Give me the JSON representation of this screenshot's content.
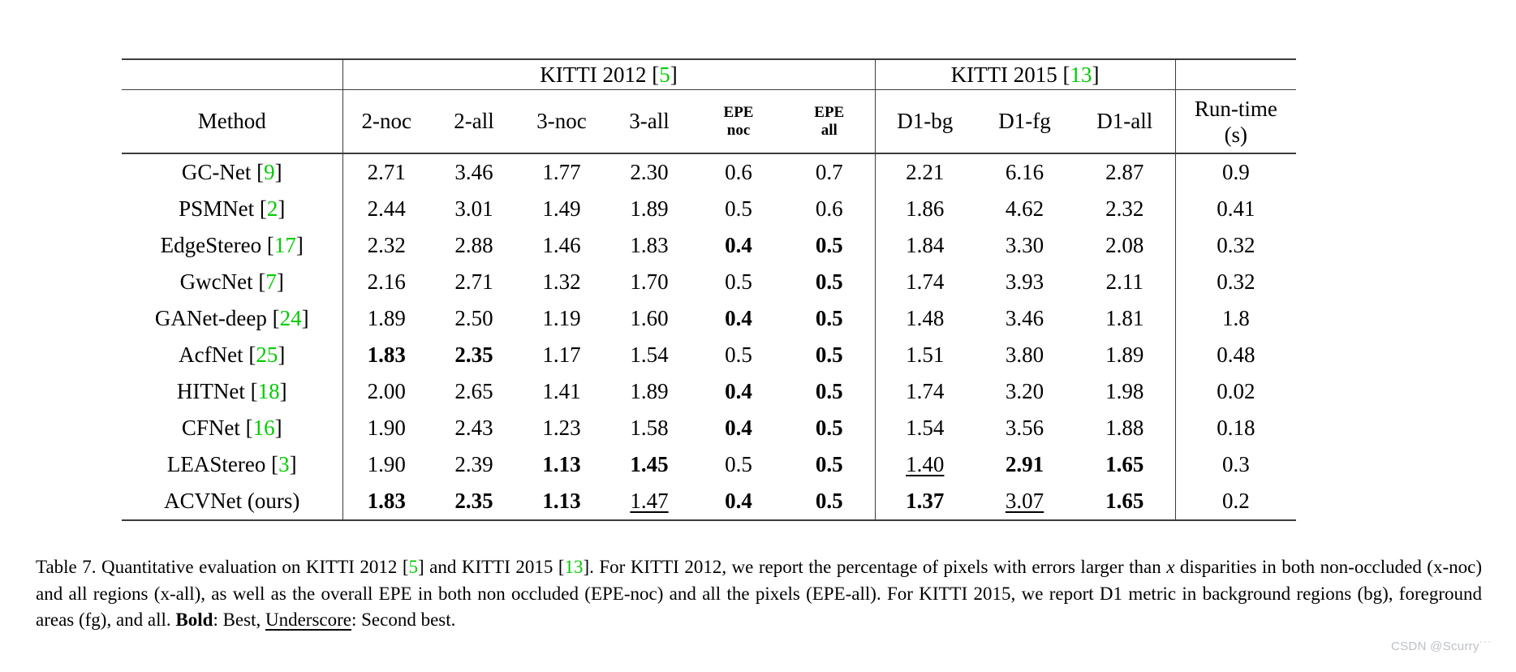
{
  "colors": {
    "citation_green": "#00cc00",
    "rule_gray": "#3c3c3c",
    "watermark_gray": "#bcc1c7"
  },
  "table": {
    "group_headers": {
      "kitti2012": [
        {
          "t": "KITTI 2012 ["
        },
        {
          "t": "5",
          "g": true
        },
        {
          "t": "]"
        }
      ],
      "kitti2015": [
        {
          "t": "KITTI 2015 ["
        },
        {
          "t": "13",
          "g": true
        },
        {
          "t": "]"
        }
      ]
    },
    "columns": {
      "method": "Method",
      "c1": "2-noc",
      "c2": "2-all",
      "c3": "3-noc",
      "c4": "3-all",
      "epe_noc": [
        "EPE",
        "noc"
      ],
      "epe_all": [
        "EPE",
        "all"
      ],
      "d1bg": "D1-bg",
      "d1fg": "D1-fg",
      "d1all": "D1-all",
      "runtime": [
        "Run-time",
        "(s)"
      ]
    },
    "rows": [
      {
        "method": [
          {
            "t": "GC-Net ["
          },
          {
            "t": "9",
            "g": true
          },
          {
            "t": "]"
          }
        ],
        "cells": [
          {
            "t": "2.71"
          },
          {
            "t": "3.46"
          },
          {
            "t": "1.77"
          },
          {
            "t": "2.30"
          },
          {
            "t": "0.6"
          },
          {
            "t": "0.7"
          },
          {
            "t": "2.21"
          },
          {
            "t": "6.16"
          },
          {
            "t": "2.87"
          },
          {
            "t": "0.9"
          }
        ]
      },
      {
        "method": [
          {
            "t": "PSMNet ["
          },
          {
            "t": "2",
            "g": true
          },
          {
            "t": "]"
          }
        ],
        "cells": [
          {
            "t": "2.44"
          },
          {
            "t": "3.01"
          },
          {
            "t": "1.49"
          },
          {
            "t": "1.89"
          },
          {
            "t": "0.5"
          },
          {
            "t": "0.6"
          },
          {
            "t": "1.86"
          },
          {
            "t": "4.62"
          },
          {
            "t": "2.32"
          },
          {
            "t": "0.41"
          }
        ]
      },
      {
        "method": [
          {
            "t": "EdgeStereo ["
          },
          {
            "t": "17",
            "g": true
          },
          {
            "t": "]"
          }
        ],
        "cells": [
          {
            "t": "2.32"
          },
          {
            "t": "2.88"
          },
          {
            "t": "1.46"
          },
          {
            "t": "1.83"
          },
          {
            "t": "0.4",
            "b": true
          },
          {
            "t": "0.5",
            "b": true
          },
          {
            "t": "1.84"
          },
          {
            "t": "3.30"
          },
          {
            "t": "2.08"
          },
          {
            "t": "0.32"
          }
        ]
      },
      {
        "method": [
          {
            "t": "GwcNet ["
          },
          {
            "t": "7",
            "g": true
          },
          {
            "t": "]"
          }
        ],
        "cells": [
          {
            "t": "2.16"
          },
          {
            "t": "2.71"
          },
          {
            "t": "1.32"
          },
          {
            "t": "1.70"
          },
          {
            "t": "0.5"
          },
          {
            "t": "0.5",
            "b": true
          },
          {
            "t": "1.74"
          },
          {
            "t": "3.93"
          },
          {
            "t": "2.11"
          },
          {
            "t": "0.32"
          }
        ]
      },
      {
        "method": [
          {
            "t": "GANet-deep ["
          },
          {
            "t": "24",
            "g": true
          },
          {
            "t": "]"
          }
        ],
        "cells": [
          {
            "t": "1.89"
          },
          {
            "t": "2.50"
          },
          {
            "t": "1.19"
          },
          {
            "t": "1.60"
          },
          {
            "t": "0.4",
            "b": true
          },
          {
            "t": "0.5",
            "b": true
          },
          {
            "t": "1.48"
          },
          {
            "t": "3.46"
          },
          {
            "t": "1.81"
          },
          {
            "t": "1.8"
          }
        ]
      },
      {
        "method": [
          {
            "t": "AcfNet ["
          },
          {
            "t": "25",
            "g": true
          },
          {
            "t": "]"
          }
        ],
        "cells": [
          {
            "t": "1.83",
            "b": true
          },
          {
            "t": "2.35",
            "b": true
          },
          {
            "t": "1.17"
          },
          {
            "t": "1.54"
          },
          {
            "t": "0.5"
          },
          {
            "t": "0.5",
            "b": true
          },
          {
            "t": "1.51"
          },
          {
            "t": "3.80"
          },
          {
            "t": "1.89"
          },
          {
            "t": "0.48"
          }
        ]
      },
      {
        "method": [
          {
            "t": "HITNet ["
          },
          {
            "t": "18",
            "g": true
          },
          {
            "t": "]"
          }
        ],
        "cells": [
          {
            "t": "2.00"
          },
          {
            "t": "2.65"
          },
          {
            "t": "1.41"
          },
          {
            "t": "1.89"
          },
          {
            "t": "0.4",
            "b": true
          },
          {
            "t": "0.5",
            "b": true
          },
          {
            "t": "1.74"
          },
          {
            "t": "3.20"
          },
          {
            "t": "1.98"
          },
          {
            "t": "0.02"
          }
        ]
      },
      {
        "method": [
          {
            "t": "CFNet ["
          },
          {
            "t": "16",
            "g": true
          },
          {
            "t": "]"
          }
        ],
        "cells": [
          {
            "t": "1.90"
          },
          {
            "t": "2.43"
          },
          {
            "t": "1.23"
          },
          {
            "t": "1.58"
          },
          {
            "t": "0.4",
            "b": true
          },
          {
            "t": "0.5",
            "b": true
          },
          {
            "t": "1.54"
          },
          {
            "t": "3.56"
          },
          {
            "t": "1.88"
          },
          {
            "t": "0.18"
          }
        ]
      },
      {
        "method": [
          {
            "t": "LEAStereo ["
          },
          {
            "t": "3",
            "g": true
          },
          {
            "t": "]"
          }
        ],
        "cells": [
          {
            "t": "1.90"
          },
          {
            "t": "2.39"
          },
          {
            "t": "1.13",
            "b": true
          },
          {
            "t": "1.45",
            "b": true
          },
          {
            "t": "0.5"
          },
          {
            "t": "0.5",
            "b": true
          },
          {
            "t": "1.40",
            "u": true
          },
          {
            "t": "2.91",
            "b": true
          },
          {
            "t": "1.65",
            "b": true
          },
          {
            "t": "0.3"
          }
        ]
      },
      {
        "method": [
          {
            "t": "ACVNet (ours)"
          }
        ],
        "cells": [
          {
            "t": "1.83",
            "b": true
          },
          {
            "t": "2.35",
            "b": true
          },
          {
            "t": "1.13",
            "b": true
          },
          {
            "t": "1.47",
            "u": true
          },
          {
            "t": "0.4",
            "b": true
          },
          {
            "t": "0.5",
            "b": true
          },
          {
            "t": "1.37",
            "b": true
          },
          {
            "t": "3.07",
            "u": true
          },
          {
            "t": "1.65",
            "b": true
          },
          {
            "t": "0.2"
          }
        ]
      }
    ]
  },
  "caption": {
    "segments": [
      {
        "t": "Table 7. Quantitative evaluation on KITTI 2012 ["
      },
      {
        "t": "5",
        "g": true
      },
      {
        "t": "] and KITTI 2015 ["
      },
      {
        "t": "13",
        "g": true
      },
      {
        "t": "]. For KITTI 2012, we report the percentage of pixels with errors larger than "
      },
      {
        "t": "x",
        "i": true
      },
      {
        "t": " disparities in both non-occluded (x-noc) and all regions (x-all), as well as the overall EPE in both non occluded (EPE-noc) and all the pixels (EPE-all). For KITTI 2015, we report D1 metric in background regions (bg), foreground areas (fg), and all. "
      },
      {
        "t": "Bold",
        "b": true
      },
      {
        "t": ": Best, "
      },
      {
        "t": "Underscore",
        "u": true
      },
      {
        "t": ": Second best."
      }
    ]
  },
  "watermark": "CSDN @Scurry˙˙˙"
}
